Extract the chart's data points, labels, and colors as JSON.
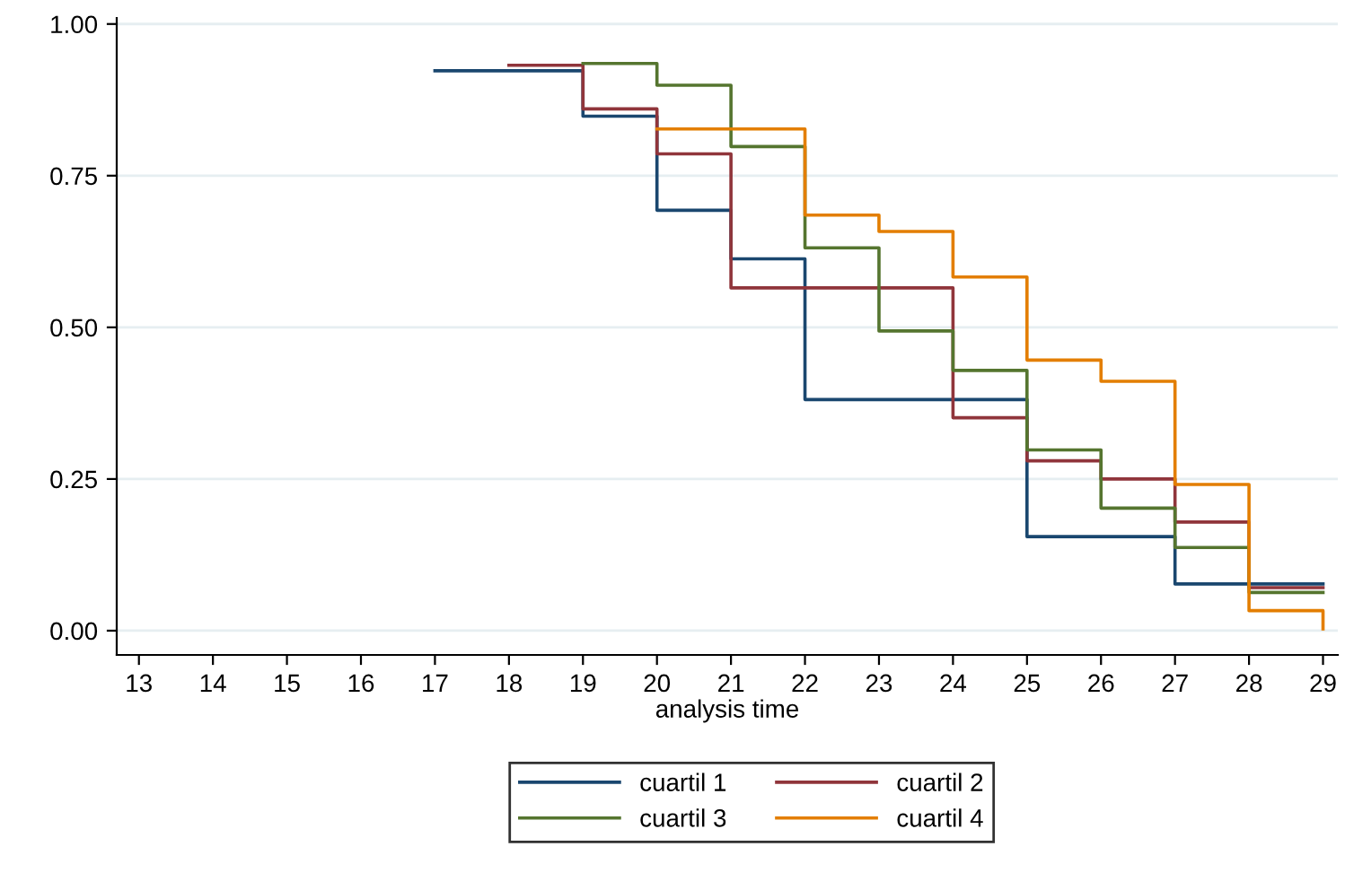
{
  "chart_data": {
    "type": "step",
    "xlabel": "analysis time",
    "series": [
      {
        "name": "cuartil 1",
        "color": "#1a476f",
        "x": [
          17,
          19,
          20,
          21,
          22,
          25,
          27,
          29
        ],
        "values": [
          0.923,
          0.848,
          0.693,
          0.613,
          0.381,
          0.155,
          0.077,
          0.077
        ]
      },
      {
        "name": "cuartil 2",
        "color": "#90353b",
        "x": [
          18,
          19,
          20,
          21,
          24,
          25,
          26,
          27,
          28,
          29
        ],
        "values": [
          0.932,
          0.86,
          0.786,
          0.565,
          0.351,
          0.28,
          0.25,
          0.179,
          0.071,
          0.071
        ]
      },
      {
        "name": "cuartil 3",
        "color": "#55752f",
        "x": [
          19,
          20,
          21,
          22,
          23,
          24,
          25,
          26,
          27,
          28,
          29
        ],
        "values": [
          0.935,
          0.899,
          0.798,
          0.631,
          0.494,
          0.429,
          0.298,
          0.202,
          0.137,
          0.063,
          0.063
        ]
      },
      {
        "name": "cuartil 4",
        "color": "#e37e00",
        "x": [
          20,
          22,
          23,
          24,
          25,
          26,
          27,
          28,
          29
        ],
        "values": [
          0.827,
          0.685,
          0.658,
          0.583,
          0.446,
          0.411,
          0.241,
          0.033,
          0.003
        ]
      }
    ],
    "xlim": [
      12.7,
      29.2
    ],
    "xticks": [
      13,
      14,
      15,
      16,
      17,
      18,
      19,
      20,
      21,
      22,
      23,
      24,
      25,
      26,
      27,
      28,
      29
    ],
    "ylim": [
      -0.04,
      1.01
    ],
    "yticks": [
      {
        "value": 0,
        "label": "0.00"
      },
      {
        "value": 0.25,
        "label": "0.25"
      },
      {
        "value": 0.5,
        "label": "0.50"
      },
      {
        "value": 0.75,
        "label": "0.75"
      },
      {
        "value": 1,
        "label": "1.00"
      }
    ],
    "grid": "y",
    "legend": "bottom",
    "line_style": "solid",
    "marker": "none"
  }
}
